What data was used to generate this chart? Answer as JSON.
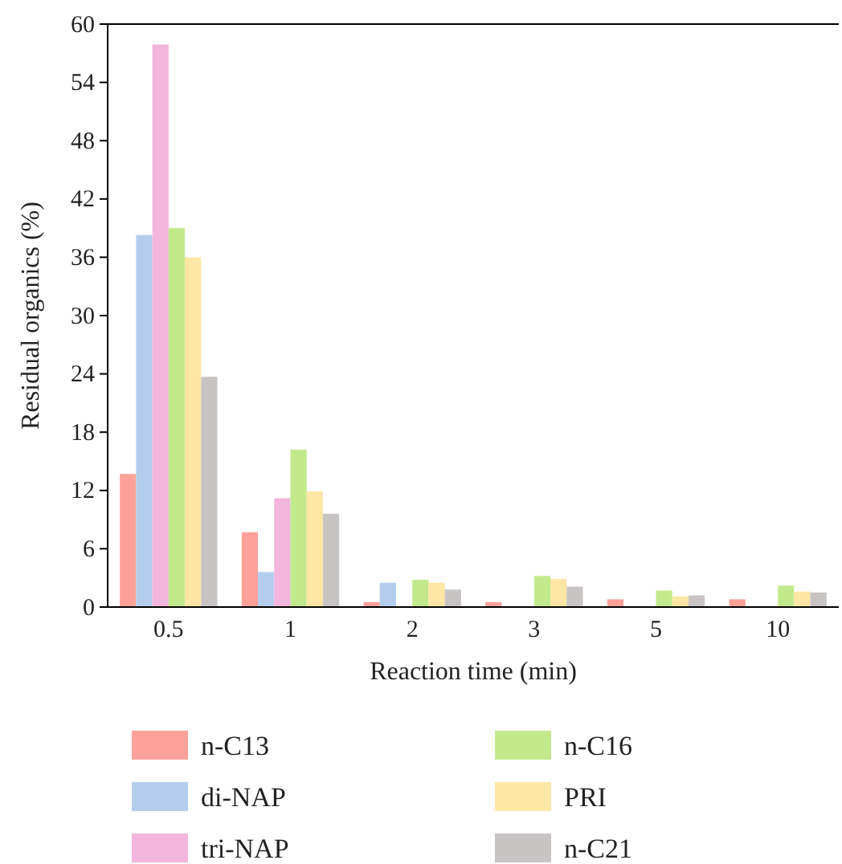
{
  "chart_data": {
    "type": "bar",
    "xlabel": "Reaction time (min)",
    "ylabel": "Residual organics (%)",
    "categories": [
      "0.5",
      "1",
      "2",
      "3",
      "5",
      "10"
    ],
    "series": [
      {
        "name": "n-C13",
        "color": "#fca19a",
        "values": [
          13.7,
          7.7,
          0.5,
          0.5,
          0.8,
          0.8
        ]
      },
      {
        "name": "di-NAP",
        "color": "#b4cdec",
        "values": [
          38.3,
          3.6,
          2.5,
          null,
          null,
          null
        ]
      },
      {
        "name": "tri-NAP",
        "color": "#f2b5dd",
        "values": [
          57.9,
          11.2,
          null,
          null,
          null,
          null
        ]
      },
      {
        "name": "n-C16",
        "color": "#c2ea8c",
        "values": [
          39.0,
          16.2,
          2.8,
          3.2,
          1.7,
          2.2
        ]
      },
      {
        "name": "PRI",
        "color": "#fee6a4",
        "values": [
          36.0,
          11.9,
          2.5,
          2.9,
          1.1,
          1.6
        ]
      },
      {
        "name": "n-C21",
        "color": "#c8c4c4",
        "values": [
          23.7,
          9.6,
          1.8,
          2.1,
          1.2,
          1.5
        ]
      }
    ],
    "ylim": [
      0,
      60
    ],
    "yticks": [
      0,
      6,
      12,
      18,
      24,
      30,
      36,
      42,
      48,
      54,
      60
    ],
    "legend": "bottom"
  }
}
